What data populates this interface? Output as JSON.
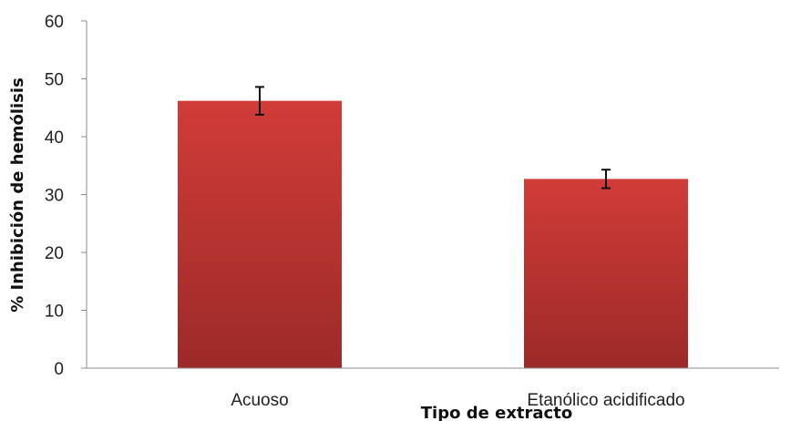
{
  "chart_data": {
    "type": "bar",
    "categories": [
      "Acuoso",
      "Etanólico acidificado"
    ],
    "series": [
      {
        "values": [
          46.2,
          32.7
        ],
        "error": [
          2.4,
          1.6
        ],
        "color": "#c0302e"
      }
    ],
    "title": "",
    "xlabel": "Tipo de extracto",
    "ylabel": "% Inhibición de hemólisis",
    "ylim": [
      0,
      60
    ],
    "yticks": [
      0,
      10,
      20,
      30,
      40,
      50,
      60
    ],
    "ytick_labels": [
      "0",
      "10",
      "20",
      "30",
      "40",
      "50",
      "60"
    ],
    "grid": false,
    "legend": "none"
  }
}
